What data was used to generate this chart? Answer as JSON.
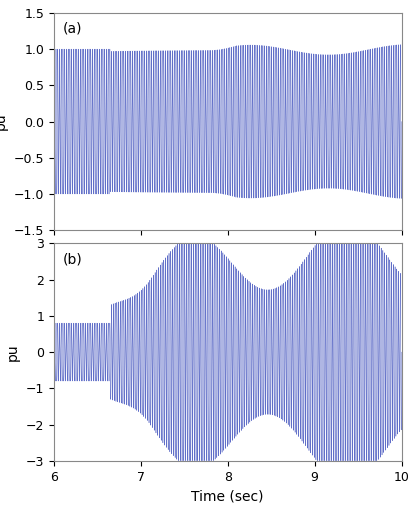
{
  "xlim": [
    6,
    10
  ],
  "ylim_a": [
    -1.5,
    1.5
  ],
  "ylim_b": [
    -3,
    3
  ],
  "yticks_a": [
    -1.5,
    -1.0,
    -0.5,
    0,
    0.5,
    1.0,
    1.5
  ],
  "yticks_b": [
    -3,
    -2,
    -1,
    0,
    1,
    2,
    3
  ],
  "xticks": [
    6,
    7,
    8,
    9,
    10
  ],
  "xlabel": "Time (sec)",
  "ylabel": "pu",
  "label_a": "(a)",
  "label_b": "(b)",
  "line_color": "#1c30b0",
  "bg_color": "#ffffff",
  "carrier_freq": 50,
  "sample_rate": 10000,
  "t_start": 6.0,
  "t_end": 10.0,
  "disturbance_time": 6.65,
  "tick_fontsize": 9,
  "label_fontsize": 10,
  "annot_fontsize": 10
}
